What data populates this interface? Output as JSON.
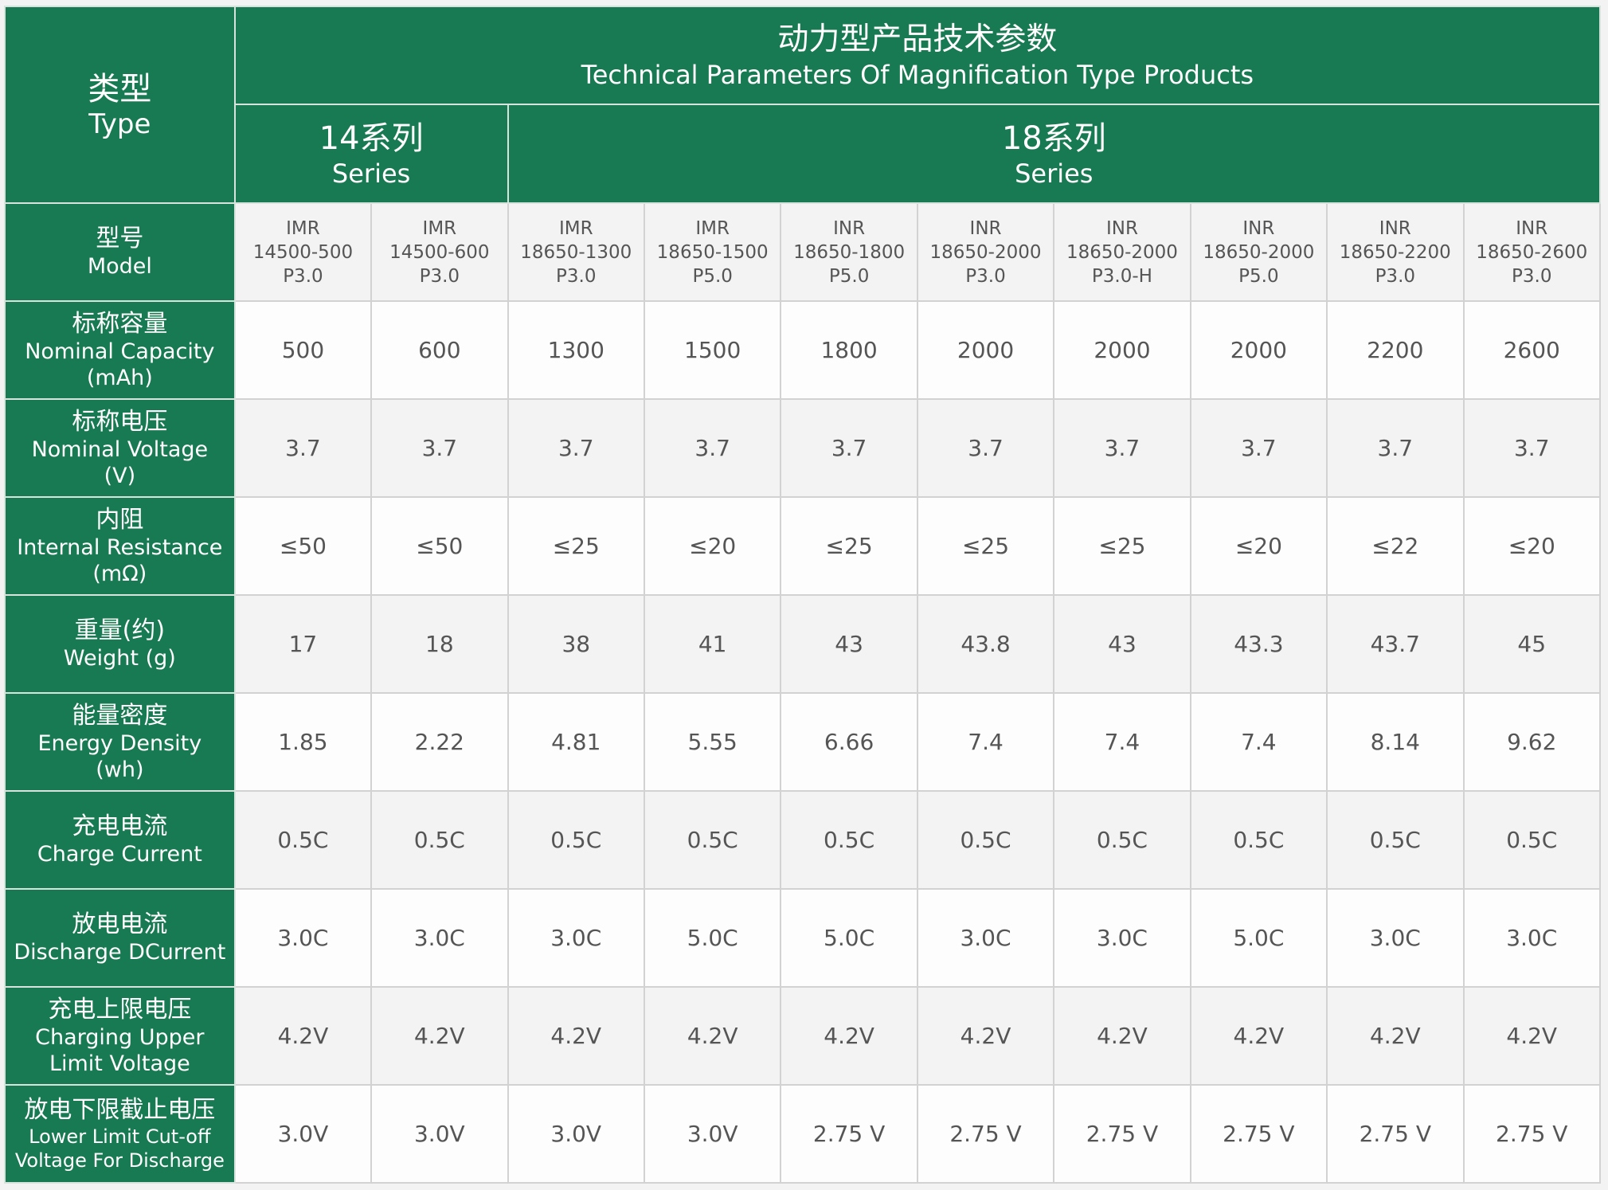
{
  "header": {
    "type_zh": "类型",
    "type_en": "Type",
    "title_zh": "动力型产品技术参数",
    "title_en": "Technical Parameters Of Magnification Type Products",
    "series": [
      {
        "zh": "14系列",
        "en": "Series"
      },
      {
        "zh": "18系列",
        "en": "Series"
      }
    ]
  },
  "colors": {
    "header_bg": "#187a52",
    "header_text": "#ffffff",
    "cell_text": "#555555",
    "row_alt": "#f3f3f4"
  },
  "model_row": {
    "label_zh": "型号",
    "label_en": "Model",
    "models": [
      [
        "IMR",
        "14500-500",
        "P3.0"
      ],
      [
        "IMR",
        "14500-600",
        "P3.0"
      ],
      [
        "IMR",
        "18650-1300",
        "P3.0"
      ],
      [
        "IMR",
        "18650-1500",
        "P5.0"
      ],
      [
        "INR",
        "18650-1800",
        "P5.0"
      ],
      [
        "INR",
        "18650-2000",
        "P3.0"
      ],
      [
        "INR",
        "18650-2000",
        "P3.0-H"
      ],
      [
        "INR",
        "18650-2000",
        "P5.0"
      ],
      [
        "INR",
        "18650-2200",
        "P3.0"
      ],
      [
        "INR",
        "18650-2600",
        "P3.0"
      ]
    ]
  },
  "rows": [
    {
      "zh": "标称容量",
      "en": [
        "Nominal Capacity",
        "(mAh)"
      ],
      "values": [
        "500",
        "600",
        "1300",
        "1500",
        "1800",
        "2000",
        "2000",
        "2000",
        "2200",
        "2600"
      ]
    },
    {
      "zh": "标称电压",
      "en": [
        "Nominal Voltage",
        "(V)"
      ],
      "values": [
        "3.7",
        "3.7",
        "3.7",
        "3.7",
        "3.7",
        "3.7",
        "3.7",
        "3.7",
        "3.7",
        "3.7"
      ]
    },
    {
      "zh": "内阻",
      "en": [
        "Internal Resistance",
        "(mΩ)"
      ],
      "values": [
        "≤50",
        "≤50",
        "≤25",
        "≤20",
        "≤25",
        "≤25",
        "≤25",
        "≤20",
        "≤22",
        "≤20"
      ]
    },
    {
      "zh": "重量(约)",
      "en": [
        "Weight (g)"
      ],
      "values": [
        "17",
        "18",
        "38",
        "41",
        "43",
        "43.8",
        "43",
        "43.3",
        "43.7",
        "45"
      ]
    },
    {
      "zh": "能量密度",
      "en": [
        "Energy Density",
        "(wh)"
      ],
      "values": [
        "1.85",
        "2.22",
        "4.81",
        "5.55",
        "6.66",
        "7.4",
        "7.4",
        "7.4",
        "8.14",
        "9.62"
      ]
    },
    {
      "zh": "充电电流",
      "en": [
        "Charge Current"
      ],
      "values": [
        "0.5C",
        "0.5C",
        "0.5C",
        "0.5C",
        "0.5C",
        "0.5C",
        "0.5C",
        "0.5C",
        "0.5C",
        "0.5C"
      ]
    },
    {
      "zh": "放电电流",
      "en": [
        "Discharge DCurrent"
      ],
      "values": [
        "3.0C",
        "3.0C",
        "3.0C",
        "5.0C",
        "5.0C",
        "3.0C",
        "3.0C",
        "5.0C",
        "3.0C",
        "3.0C"
      ]
    },
    {
      "zh": "充电上限电压",
      "en": [
        "Charging Upper",
        "Limit Voltage"
      ],
      "values": [
        "4.2V",
        "4.2V",
        "4.2V",
        "4.2V",
        "4.2V",
        "4.2V",
        "4.2V",
        "4.2V",
        "4.2V",
        "4.2V"
      ]
    },
    {
      "zh": "放电下限截止电压",
      "en": [
        "Lower Limit Cut-off",
        "Voltage For Discharge"
      ],
      "small": true,
      "values": [
        "3.0V",
        "3.0V",
        "3.0V",
        "3.0V",
        "2.75 V",
        "2.75 V",
        "2.75 V",
        "2.75 V",
        "2.75 V",
        "2.75 V"
      ]
    }
  ]
}
